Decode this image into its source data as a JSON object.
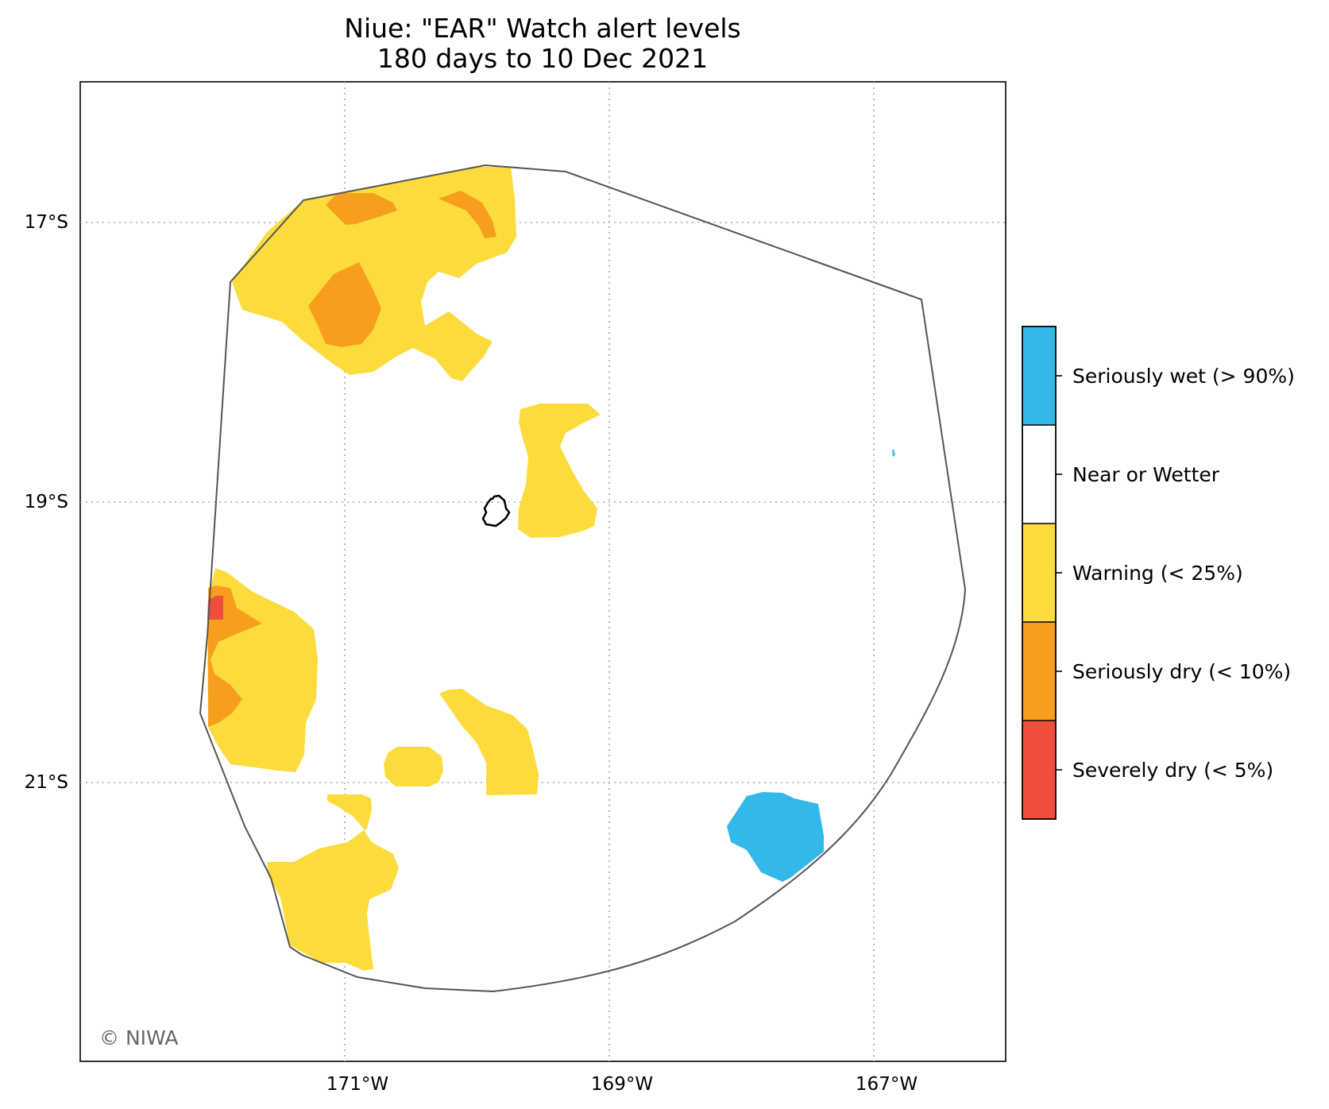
{
  "title": {
    "line1": "Niue: \"EAR\" Watch alert levels",
    "line2": "180 days to 10 Dec 2021"
  },
  "axes": {
    "x_ticks": [
      "171°W",
      "169°W",
      "167°W"
    ],
    "y_ticks": [
      "17°S",
      "19°S",
      "21°S"
    ],
    "gridlines": true,
    "gridline_style": "dotted"
  },
  "legend": {
    "items": [
      {
        "label": "Seriously wet (> 90%)",
        "color": "#33b8ea"
      },
      {
        "label": "Near or Wetter",
        "color": "#ffffff"
      },
      {
        "label": "Warning (< 25%)",
        "color": "#fcdc3c"
      },
      {
        "label": "Seriously dry (< 10%)",
        "color": "#f79e1f"
      },
      {
        "label": "Severely dry (< 5%)",
        "color": "#ef4f3a"
      }
    ]
  },
  "credit": "© NIWA",
  "map_features": {
    "island": "Niue",
    "boundary": "EEZ outline",
    "region_colors": {
      "warning": "#fcdc3c",
      "seriously_dry": "#f79e1f",
      "severely_dry": "#ef4f3a",
      "seriously_wet": "#33b8ea"
    }
  }
}
